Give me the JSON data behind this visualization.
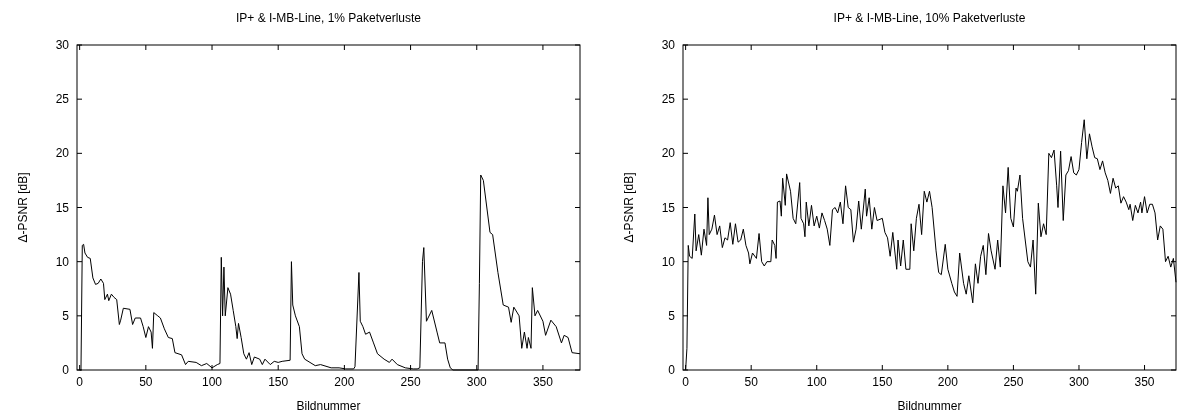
{
  "chart_data": [
    {
      "type": "line",
      "title": "IP+ & I-MB-Line, 1% Paketverluste",
      "xlabel": "Bildnummer",
      "ylabel": "Δ-PSNR [dB]",
      "color": "#000000",
      "xlim": [
        -2,
        378
      ],
      "ylim": [
        0,
        30
      ],
      "xticks": [
        0,
        50,
        100,
        150,
        200,
        250,
        300,
        350
      ],
      "yticks": [
        0,
        5,
        10,
        15,
        20,
        25,
        30
      ],
      "x": [
        0,
        1,
        2,
        3,
        4,
        6,
        8,
        10,
        12,
        14,
        16,
        18,
        19,
        21,
        22,
        24,
        26,
        28,
        30,
        31,
        33,
        38,
        40,
        42,
        46,
        48,
        50,
        52,
        54,
        55,
        56,
        59,
        61,
        64,
        67,
        70,
        72,
        77,
        80,
        82,
        88,
        92,
        96,
        100,
        104,
        106,
        107,
        108,
        109,
        110,
        112,
        114,
        116,
        118,
        119,
        120,
        122,
        124,
        126,
        128,
        130,
        132,
        136,
        138,
        140,
        144,
        147,
        150,
        153,
        159,
        160,
        161,
        163,
        166,
        168,
        170,
        174,
        178,
        182,
        190,
        196,
        201,
        207,
        208,
        211,
        212,
        214,
        216,
        219,
        222,
        225,
        230,
        234,
        236,
        240,
        246,
        252,
        255,
        257,
        259,
        260,
        262,
        266,
        270,
        272,
        276,
        278,
        280,
        282,
        301,
        302,
        303,
        305,
        310,
        312,
        316,
        320,
        324,
        326,
        328,
        332,
        334,
        336,
        338,
        339,
        341,
        342,
        344,
        346,
        350,
        352,
        356,
        360,
        364,
        366,
        369,
        372,
        378
      ],
      "values": [
        0,
        0,
        11.5,
        11.6,
        10.8,
        10.4,
        10.3,
        8.5,
        7.9,
        8,
        8.4,
        8,
        6.5,
        7,
        6.4,
        7,
        6.7,
        6.5,
        4.2,
        4.6,
        5.7,
        5.6,
        4.2,
        4.8,
        4.8,
        4,
        3,
        4,
        3.5,
        2,
        5.3,
        5,
        4.8,
        3.8,
        3,
        2.9,
        1.6,
        1.4,
        0.5,
        0.8,
        0.7,
        0.4,
        0.6,
        0.2,
        0.5,
        0.6,
        10.4,
        5,
        9.5,
        5,
        7.6,
        7,
        5.5,
        4,
        2.9,
        4.3,
        3,
        1.5,
        1,
        1.6,
        0.5,
        1.2,
        1,
        0.5,
        1,
        0.5,
        0.8,
        0.7,
        0.8,
        0.9,
        10,
        6,
        5,
        4,
        1.5,
        1,
        0.7,
        0.4,
        0.5,
        0.2,
        0.2,
        0.1,
        0.1,
        0.3,
        9,
        4.5,
        4,
        3.3,
        3.5,
        2.5,
        1.5,
        1,
        0.7,
        1,
        0.5,
        0.2,
        0.1,
        0.1,
        0.2,
        10,
        11.3,
        4.5,
        5.5,
        3.5,
        2.5,
        2.5,
        1,
        0.2,
        0,
        0,
        8,
        18,
        17.5,
        12.7,
        12.5,
        9,
        6,
        5.8,
        4.4,
        5.8,
        5,
        2,
        3.5,
        2,
        3,
        2,
        7.6,
        5,
        5.5,
        4.5,
        3.2,
        4.6,
        4,
        2.5,
        3.2,
        3,
        1.6,
        1.5
      ]
    },
    {
      "type": "line",
      "title": "IP+ & I-MB-Line, 10% Paketverluste",
      "xlabel": "Bildnummer",
      "ylabel": "Δ-PSNR [dB]",
      "color": "#000000",
      "xlim": [
        -2,
        374
      ],
      "ylim": [
        0,
        30
      ],
      "xticks": [
        0,
        50,
        100,
        150,
        200,
        250,
        300,
        350
      ],
      "yticks": [
        0,
        5,
        10,
        15,
        20,
        25,
        30
      ],
      "x": [
        0,
        1,
        2,
        3,
        5,
        7,
        8,
        10,
        12,
        14,
        16,
        17,
        18,
        20,
        22,
        24,
        26,
        28,
        30,
        32,
        34,
        36,
        38,
        40,
        42,
        44,
        46,
        48,
        49,
        51,
        54,
        56,
        58,
        60,
        62,
        65,
        66,
        68,
        69,
        70,
        72,
        73,
        74,
        76,
        77,
        80,
        82,
        84,
        87,
        88,
        90,
        91,
        92,
        94,
        96,
        98,
        100,
        102,
        104,
        106,
        108,
        110,
        112,
        114,
        116,
        118,
        120,
        122,
        124,
        126,
        128,
        130,
        132,
        134,
        137,
        138,
        140,
        142,
        144,
        146,
        150,
        152,
        154,
        156,
        158,
        161,
        162,
        164,
        166,
        168,
        171,
        172,
        174,
        176,
        178,
        180,
        182,
        184,
        186,
        188,
        191,
        193,
        195,
        198,
        200,
        203,
        205,
        207,
        209,
        212,
        214,
        216,
        219,
        221,
        223,
        225,
        227,
        229,
        231,
        233,
        236,
        238,
        240,
        242,
        244,
        246,
        248,
        250,
        252,
        253,
        255,
        257,
        259,
        261,
        263,
        265,
        267,
        269,
        271,
        273,
        275,
        277,
        279,
        281,
        283,
        284,
        286,
        288,
        290,
        292,
        294,
        296,
        298,
        300,
        302,
        304,
        306,
        308,
        310,
        312,
        314,
        316,
        318,
        320,
        322,
        324,
        326,
        328,
        330,
        332,
        334,
        336,
        338,
        339,
        341,
        343,
        345,
        347,
        348,
        350,
        352,
        354,
        356,
        358,
        360,
        362,
        364,
        366,
        368,
        370,
        372,
        374
      ],
      "values": [
        0,
        2,
        11.5,
        10.5,
        10.3,
        14.4,
        11,
        12.5,
        10.6,
        13,
        11.5,
        15.9,
        12.5,
        13,
        14.3,
        12.5,
        13.3,
        11.3,
        12.2,
        12,
        13.6,
        11.6,
        13.5,
        11.8,
        12,
        13,
        11.5,
        10.8,
        9.8,
        10.8,
        10.3,
        12.6,
        10,
        9.6,
        10,
        10,
        12,
        11.5,
        10.3,
        15.5,
        15.6,
        14.2,
        17.7,
        15.2,
        18.1,
        16.5,
        14,
        13.5,
        17.3,
        14,
        13.5,
        12.3,
        15.5,
        13.3,
        15.2,
        13.3,
        14.2,
        13.1,
        14.5,
        13.8,
        13,
        11.5,
        14.8,
        15,
        14.5,
        15.5,
        13.5,
        17,
        15,
        14.8,
        11.8,
        13,
        15.6,
        13,
        16.7,
        14.2,
        15.9,
        13,
        15,
        13.8,
        14,
        12.7,
        12.2,
        10.5,
        12.7,
        9.3,
        12,
        9.6,
        12,
        9.3,
        9.3,
        13.5,
        11,
        14,
        15.3,
        12.5,
        16.5,
        15.5,
        16.5,
        15,
        11,
        9,
        8.8,
        11.6,
        9.3,
        8,
        7.2,
        6.8,
        10.8,
        8,
        7,
        8.7,
        6.2,
        9.8,
        8,
        10.5,
        11.5,
        8.8,
        12.6,
        11,
        9.3,
        12,
        9.5,
        17,
        14.5,
        18.7,
        14,
        13.2,
        16.8,
        16.5,
        18,
        14,
        12,
        10,
        9.5,
        12,
        7,
        15.4,
        12.3,
        13.5,
        12.5,
        20,
        19.6,
        20.3,
        17,
        15,
        20.2,
        13.8,
        18,
        18.4,
        19.7,
        18.2,
        18,
        18.5,
        21,
        23.1,
        19.5,
        21.8,
        20.6,
        19.6,
        19.5,
        18.5,
        19.3,
        18.2,
        17.5,
        16.3,
        17.7,
        16.8,
        17,
        15.4,
        16,
        15.5,
        14.8,
        15.3,
        13.8,
        15.2,
        14.5,
        15.5,
        14.5,
        16,
        14.5,
        15.3,
        15.3,
        14.5,
        12,
        13.3,
        13,
        10,
        10.5,
        9.5,
        10.3,
        8.1
      ]
    }
  ]
}
